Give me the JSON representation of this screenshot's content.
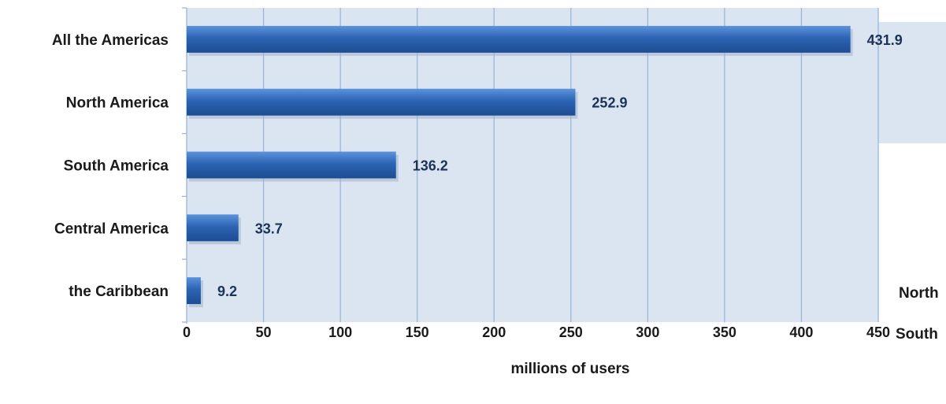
{
  "chart_data": {
    "type": "bar",
    "orientation": "horizontal",
    "title": "",
    "categories": [
      "All the Americas",
      "North America",
      "South America",
      "Central America",
      "the Caribbean"
    ],
    "values": [
      431.9,
      252.9,
      136.2,
      33.7,
      9.2
    ],
    "value_labels": [
      "431.9",
      "252.9",
      "136.2",
      "33.7",
      "9.2"
    ],
    "xlabel": "millions of users",
    "ylabel": "",
    "xlim": [
      0,
      450
    ],
    "x_ticks": [
      "0",
      "50",
      "100",
      "150",
      "200",
      "250",
      "300",
      "350",
      "400",
      "450"
    ],
    "grid": true,
    "colors": {
      "bar": "#2c64b4",
      "bar_light": "#5c93db",
      "bar_dark": "#1d4c92",
      "plot_bg": "#dbe5f1",
      "gridline": "#9db6d6",
      "value_text": "#1e3256"
    },
    "partial_legend_entries": [
      "North",
      "South"
    ]
  }
}
